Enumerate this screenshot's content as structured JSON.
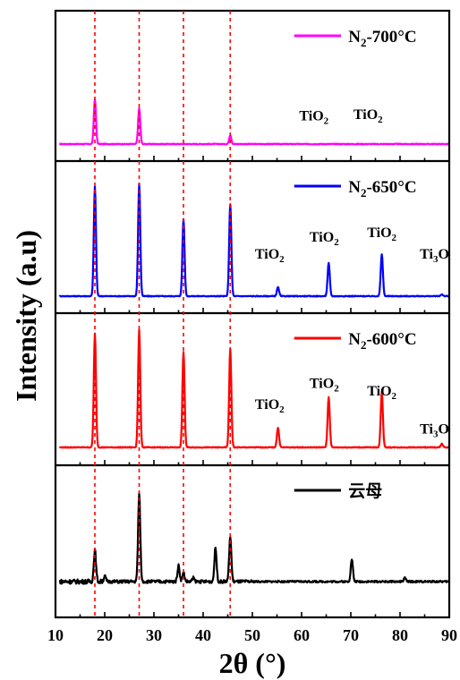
{
  "chart_data": {
    "type": "line",
    "xlabel": "2θ (°)",
    "ylabel": "Intensity (a.u)",
    "xlim": [
      10,
      90
    ],
    "x_ticks": [
      10,
      20,
      30,
      40,
      50,
      60,
      70,
      80,
      90
    ],
    "reference_lines_x": [
      18,
      27,
      36,
      45.5
    ],
    "reference_line_color": "#ff0000",
    "panels": [
      {
        "legend": "N2-700°C",
        "legend_main": "N",
        "legend_sub": "2",
        "legend_rest": "-700°C",
        "color": "#ff00ff",
        "peaks": [
          [
            18,
            50
          ],
          [
            27,
            40
          ],
          [
            45.5,
            10
          ]
        ],
        "annotations": [
          {
            "main": "TiO",
            "sub": "2",
            "x": 62.5,
            "level": 0.27
          },
          {
            "main": "TiO",
            "sub": "2",
            "x": 73.5,
            "level": 0.28
          }
        ]
      },
      {
        "legend": "N2-650°C",
        "legend_main": "N",
        "legend_sub": "2",
        "legend_rest": "-650°C",
        "color": "#0000ff",
        "peaks": [
          [
            18,
            122
          ],
          [
            27,
            126
          ],
          [
            36,
            86
          ],
          [
            45.5,
            103
          ],
          [
            55.2,
            10
          ],
          [
            65.5,
            37
          ],
          [
            76.3,
            47
          ],
          [
            88.5,
            2
          ]
        ],
        "annotations": [
          {
            "main": "TiO",
            "sub": "2",
            "x": 53.5,
            "level": 0.36
          },
          {
            "main": "TiO",
            "sub": "2",
            "x": 64.6,
            "level": 0.47
          },
          {
            "main": "TiO",
            "sub": "2",
            "x": 76.3,
            "level": 0.5
          },
          {
            "main": "Ti",
            "sub": "3",
            "rest": "O",
            "x": 87.0,
            "level": 0.36
          }
        ]
      },
      {
        "legend": "N2-600°C",
        "legend_main": "N",
        "legend_sub": "2",
        "legend_rest": "-600°C",
        "color": "#ff0000",
        "peaks": [
          [
            18,
            127
          ],
          [
            27,
            131
          ],
          [
            36,
            107
          ],
          [
            45.5,
            110
          ],
          [
            55.2,
            22
          ],
          [
            65.5,
            56
          ],
          [
            76.3,
            62
          ],
          [
            88.5,
            4
          ]
        ],
        "annotations": [
          {
            "main": "TiO",
            "sub": "2",
            "x": 53.5,
            "level": 0.37
          },
          {
            "main": "TiO",
            "sub": "2",
            "x": 64.6,
            "level": 0.51
          },
          {
            "main": "TiO",
            "sub": "2",
            "x": 76.3,
            "level": 0.46
          },
          {
            "main": "Ti",
            "sub": "3",
            "rest": "O",
            "x": 87.0,
            "level": 0.21
          }
        ]
      },
      {
        "legend": "云母",
        "legend_main": "云母",
        "legend_sub": "",
        "legend_rest": "",
        "color": "#000000",
        "peaks": [
          [
            18,
            35
          ],
          [
            20,
            6
          ],
          [
            27,
            98
          ],
          [
            35,
            18
          ],
          [
            36,
            10
          ],
          [
            38,
            4
          ],
          [
            42.5,
            38
          ],
          [
            45.5,
            50
          ],
          [
            70.2,
            25
          ],
          [
            81,
            4
          ]
        ],
        "annotations": []
      }
    ]
  }
}
